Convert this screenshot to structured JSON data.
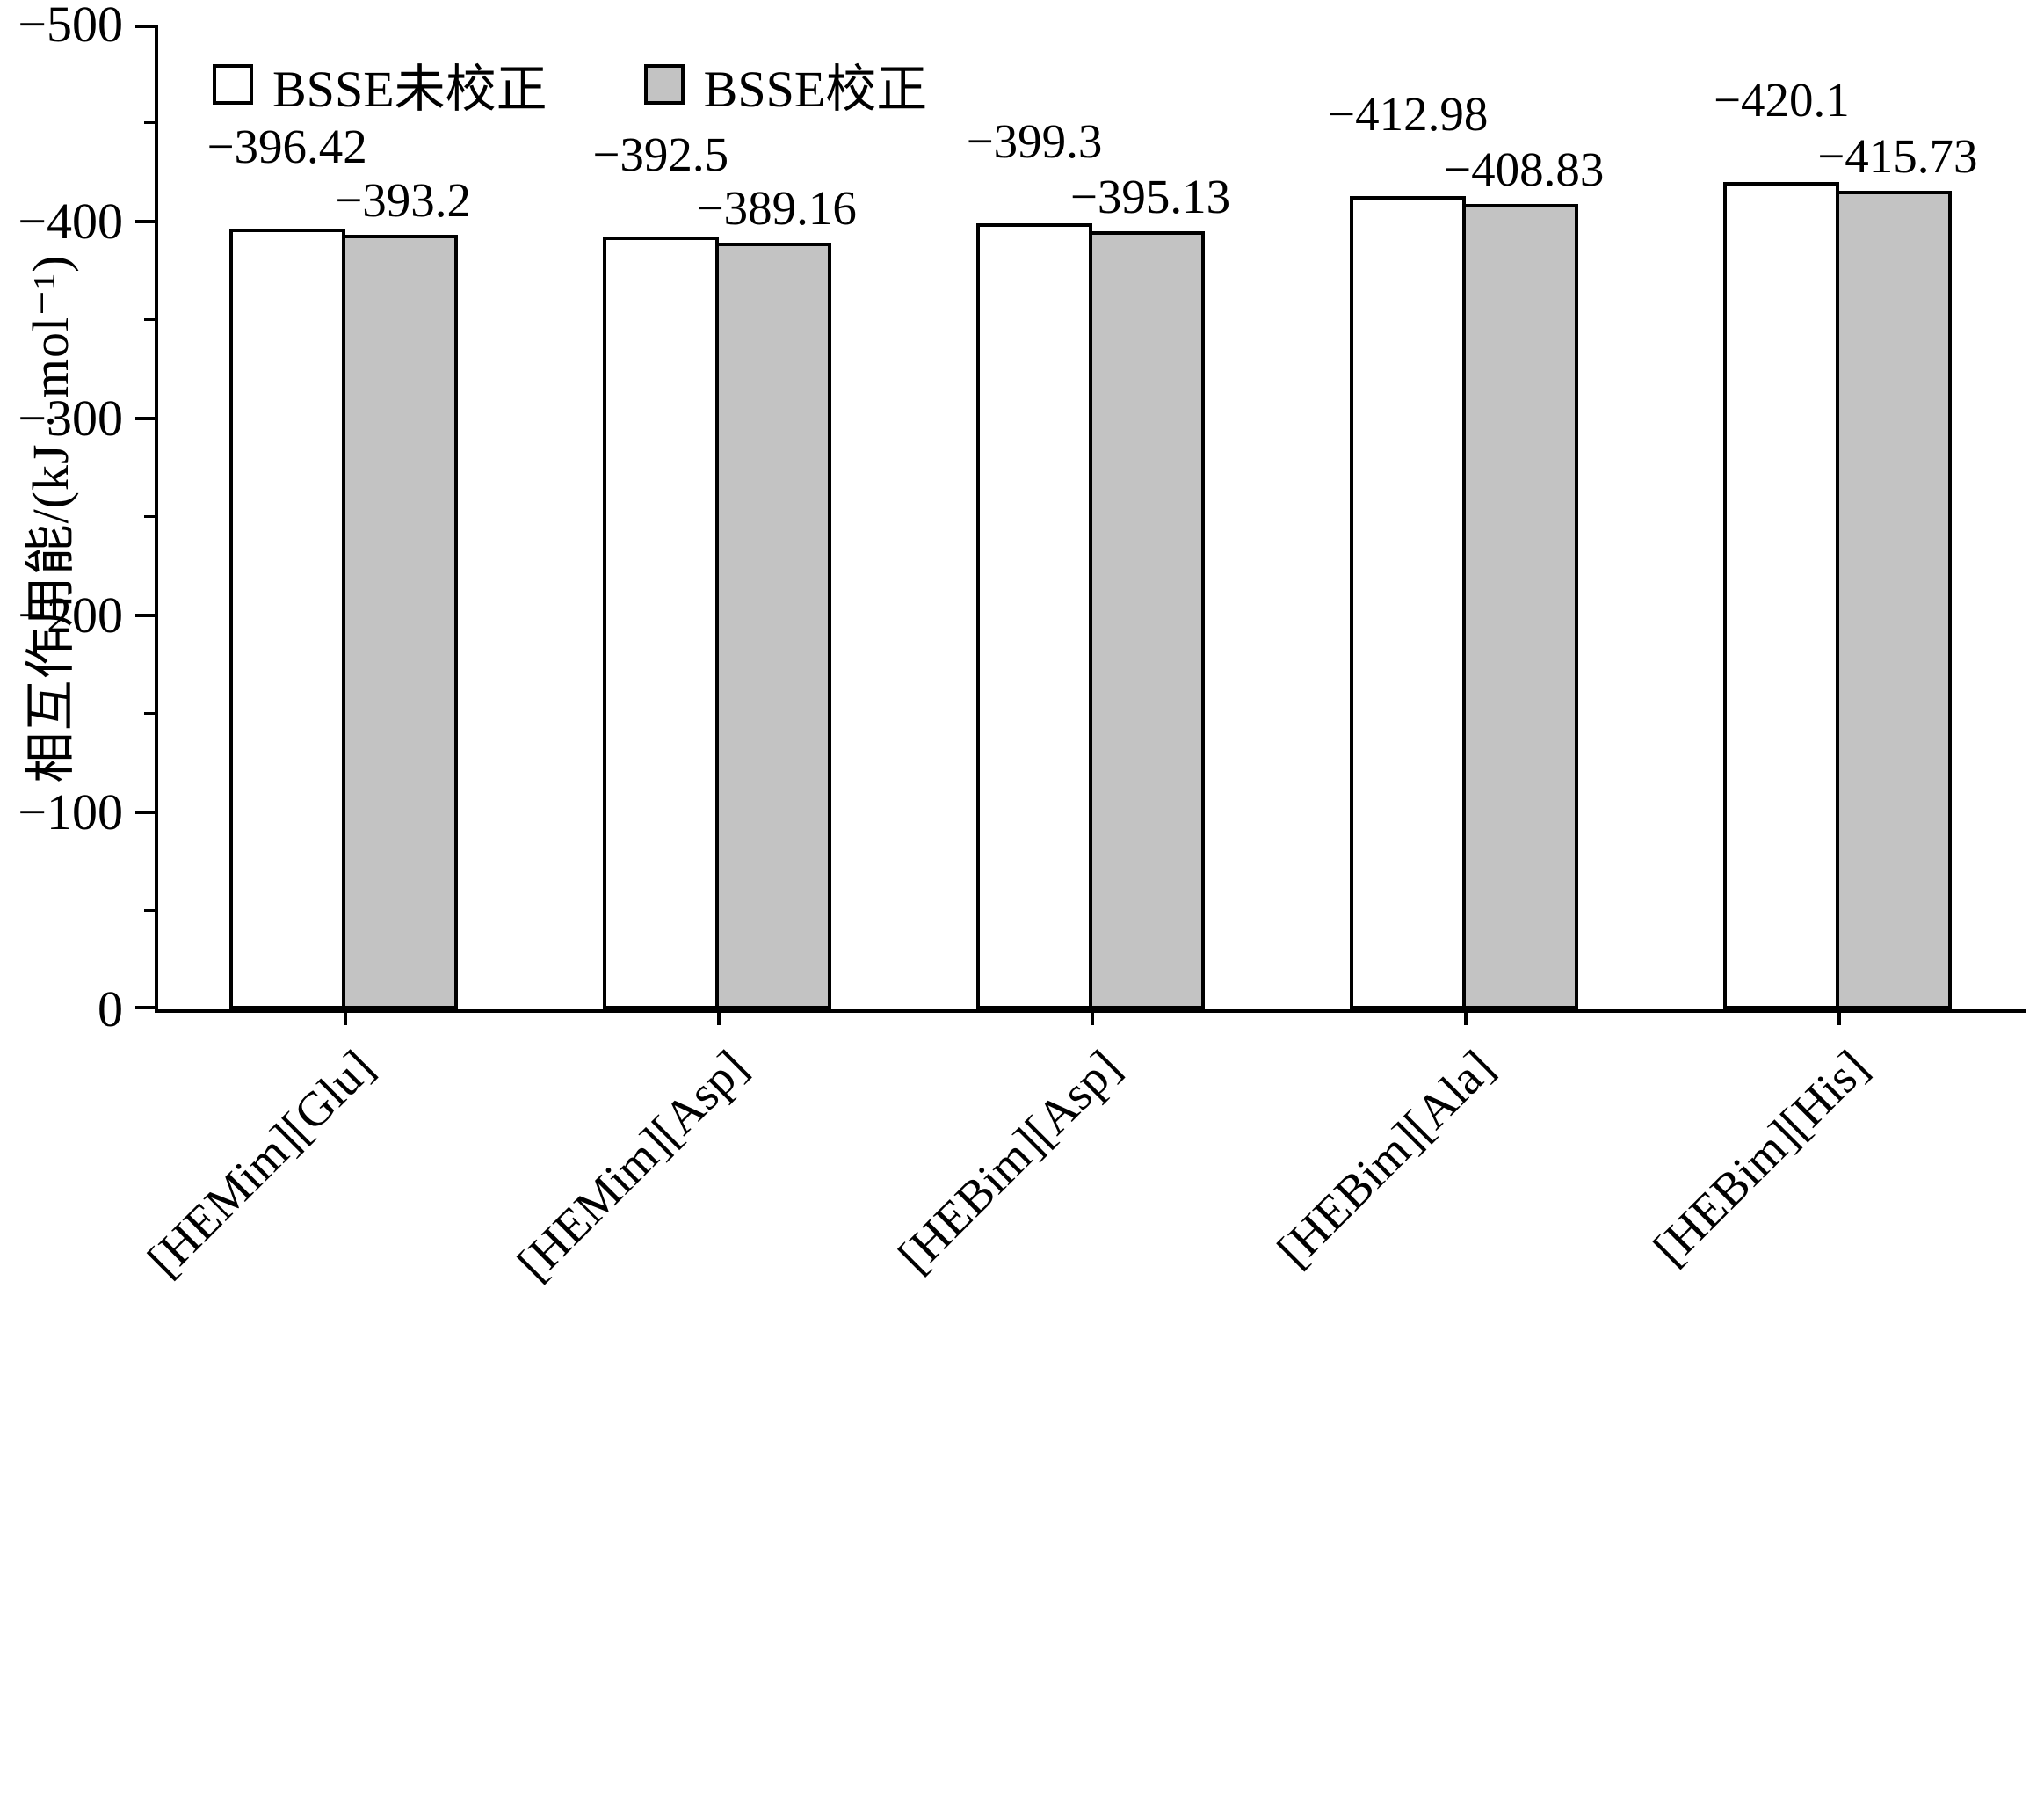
{
  "chart_data": {
    "type": "bar",
    "title": "",
    "xlabel": "",
    "ylabel": "相互作用能/(kJ · mol⁻¹)",
    "ylim": [
      0,
      -500
    ],
    "ytick_labels": [
      "0",
      "−100",
      "−200",
      "−300",
      "−400",
      "−500"
    ],
    "ytick_values": [
      0,
      100,
      200,
      300,
      400,
      500
    ],
    "minor_tick_step": 50,
    "grid": false,
    "legend_position": "top-left",
    "categories": [
      "[HEMim][Glu]",
      "[HEMim][Asp]",
      "[HEBim][Asp]",
      "[HEBim][Ala]",
      "[HEBim][His]"
    ],
    "series": [
      {
        "name": "BSSE未校正",
        "fill": "#ffffff",
        "values": [
          -396.42,
          -392.5,
          -399.3,
          -412.98,
          -420.1
        ],
        "labels": [
          "−396.42",
          "−392.5",
          "−399.3",
          "−412.98",
          "−420.1"
        ]
      },
      {
        "name": "BSSE校正",
        "fill": "#c3c3c3",
        "values": [
          -393.2,
          -389.16,
          -395.13,
          -408.83,
          -415.73
        ],
        "labels": [
          "−393.2",
          "−389.16",
          "−395.13",
          "−408.83",
          "−415.73"
        ]
      }
    ]
  }
}
